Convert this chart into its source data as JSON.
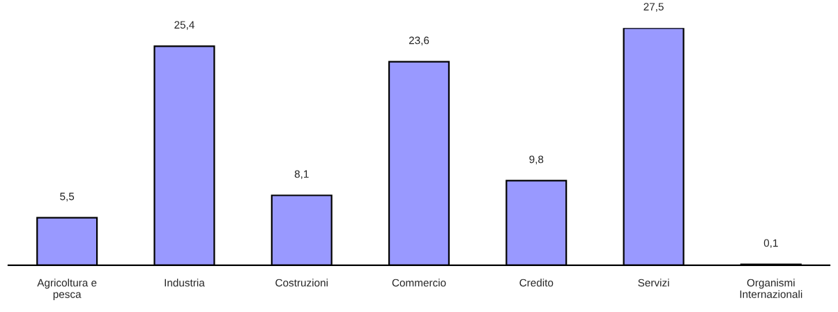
{
  "chart_data": {
    "type": "bar",
    "categories": [
      "Agricoltura e pesca",
      "Industria",
      "Costruzioni",
      "Commercio",
      "Credito",
      "Servizi",
      "Organismi Internazionali"
    ],
    "values": [
      5.5,
      25.4,
      8.1,
      23.6,
      9.8,
      27.5,
      0.1
    ],
    "value_labels": [
      "5,5",
      "25,4",
      "8,1",
      "23,6",
      "9,8",
      "27,5",
      "0,1"
    ],
    "color": "#9999ff",
    "tick_labels": "x",
    "grid": false,
    "legend": false
  }
}
